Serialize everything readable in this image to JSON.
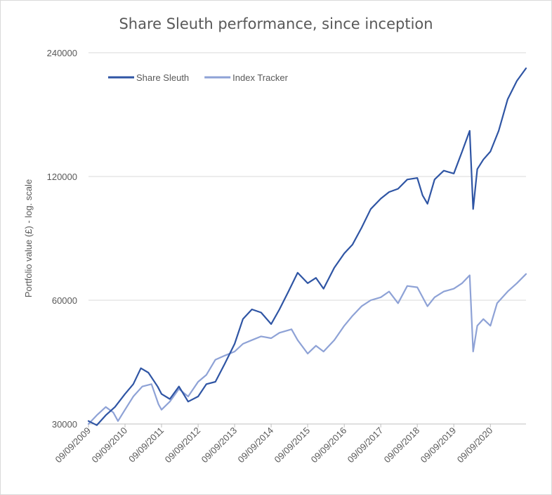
{
  "chart_data": {
    "type": "line",
    "title": "Share Sleuth performance, since inception",
    "xlabel": "",
    "ylabel": "Portfolio value (£) - log. scale",
    "y_scale": "log",
    "ylim": [
      30000,
      240000
    ],
    "yticks": [
      "30000",
      "60000",
      "120000",
      "240000"
    ],
    "ytick_values": [
      30000,
      60000,
      120000,
      240000
    ],
    "xticks": [
      "09/09/2009",
      "09/09/2010",
      "09/09/2011",
      "09/09/2012",
      "09/09/2013",
      "09/09/2014",
      "09/09/2015",
      "09/09/2016",
      "09/09/2017",
      "09/09/2018",
      "09/09/2019",
      "09/09/2020"
    ],
    "xlim": [
      "2009-09-09",
      "2021-08-31"
    ],
    "grid": true,
    "legend_position": "top-left",
    "series": [
      {
        "name": "Share Sleuth",
        "color": "#2f55a4",
        "points": [
          [
            "2009-09-09",
            30500
          ],
          [
            "2009-12-01",
            29800
          ],
          [
            "2010-03-01",
            31500
          ],
          [
            "2010-06-01",
            33000
          ],
          [
            "2010-09-09",
            35500
          ],
          [
            "2010-12-01",
            37500
          ],
          [
            "2011-02-15",
            41000
          ],
          [
            "2011-05-01",
            40000
          ],
          [
            "2011-08-01",
            37000
          ],
          [
            "2011-09-09",
            35500
          ],
          [
            "2011-12-01",
            34500
          ],
          [
            "2012-03-01",
            37000
          ],
          [
            "2012-06-01",
            34000
          ],
          [
            "2012-09-09",
            35000
          ],
          [
            "2012-12-01",
            37500
          ],
          [
            "2013-03-01",
            38000
          ],
          [
            "2013-06-01",
            42000
          ],
          [
            "2013-09-09",
            47000
          ],
          [
            "2013-12-01",
            54000
          ],
          [
            "2014-03-01",
            57000
          ],
          [
            "2014-06-01",
            56000
          ],
          [
            "2014-09-09",
            52500
          ],
          [
            "2014-12-01",
            57000
          ],
          [
            "2015-03-01",
            63000
          ],
          [
            "2015-06-01",
            70000
          ],
          [
            "2015-09-09",
            66000
          ],
          [
            "2015-12-01",
            68000
          ],
          [
            "2016-02-15",
            64000
          ],
          [
            "2016-06-01",
            72000
          ],
          [
            "2016-09-09",
            78000
          ],
          [
            "2016-12-01",
            82000
          ],
          [
            "2017-03-01",
            90000
          ],
          [
            "2017-06-01",
            100000
          ],
          [
            "2017-09-09",
            106000
          ],
          [
            "2017-12-01",
            110000
          ],
          [
            "2018-03-01",
            112000
          ],
          [
            "2018-06-01",
            118000
          ],
          [
            "2018-09-09",
            119000
          ],
          [
            "2018-11-01",
            108000
          ],
          [
            "2018-12-20",
            103000
          ],
          [
            "2019-03-01",
            118000
          ],
          [
            "2019-06-01",
            124000
          ],
          [
            "2019-09-09",
            122000
          ],
          [
            "2019-12-01",
            138000
          ],
          [
            "2020-02-15",
            155000
          ],
          [
            "2020-03-20",
            100000
          ],
          [
            "2020-05-01",
            125000
          ],
          [
            "2020-07-01",
            132000
          ],
          [
            "2020-09-09",
            138000
          ],
          [
            "2020-12-01",
            155000
          ],
          [
            "2021-03-01",
            185000
          ],
          [
            "2021-06-01",
            205000
          ],
          [
            "2021-08-31",
            220000
          ]
        ]
      },
      {
        "name": "Index Tracker",
        "color": "#8ea2d6",
        "points": [
          [
            "2009-09-09",
            30000
          ],
          [
            "2009-12-01",
            31500
          ],
          [
            "2010-03-01",
            33000
          ],
          [
            "2010-05-15",
            32000
          ],
          [
            "2010-07-01",
            30500
          ],
          [
            "2010-09-09",
            32500
          ],
          [
            "2010-12-01",
            35000
          ],
          [
            "2011-03-01",
            37000
          ],
          [
            "2011-06-01",
            37500
          ],
          [
            "2011-08-10",
            33500
          ],
          [
            "2011-09-09",
            32500
          ],
          [
            "2011-12-01",
            34000
          ],
          [
            "2012-03-01",
            36500
          ],
          [
            "2012-06-01",
            35000
          ],
          [
            "2012-09-09",
            38000
          ],
          [
            "2012-12-01",
            39500
          ],
          [
            "2013-03-01",
            43000
          ],
          [
            "2013-06-01",
            44000
          ],
          [
            "2013-09-09",
            45000
          ],
          [
            "2013-12-01",
            47000
          ],
          [
            "2014-03-01",
            48000
          ],
          [
            "2014-06-01",
            49000
          ],
          [
            "2014-09-09",
            48500
          ],
          [
            "2014-12-01",
            50000
          ],
          [
            "2015-04-01",
            51000
          ],
          [
            "2015-06-01",
            48000
          ],
          [
            "2015-09-09",
            44500
          ],
          [
            "2015-12-01",
            46500
          ],
          [
            "2016-02-15",
            45000
          ],
          [
            "2016-06-01",
            48000
          ],
          [
            "2016-09-09",
            52000
          ],
          [
            "2016-12-01",
            55000
          ],
          [
            "2017-03-01",
            58000
          ],
          [
            "2017-06-01",
            60000
          ],
          [
            "2017-09-09",
            61000
          ],
          [
            "2017-12-01",
            63000
          ],
          [
            "2018-03-01",
            59000
          ],
          [
            "2018-06-01",
            65000
          ],
          [
            "2018-09-09",
            64500
          ],
          [
            "2018-12-20",
            58000
          ],
          [
            "2019-03-01",
            61000
          ],
          [
            "2019-06-01",
            63000
          ],
          [
            "2019-09-09",
            64000
          ],
          [
            "2019-12-01",
            66000
          ],
          [
            "2020-02-15",
            69000
          ],
          [
            "2020-03-20",
            45000
          ],
          [
            "2020-05-01",
            52000
          ],
          [
            "2020-07-01",
            54000
          ],
          [
            "2020-09-09",
            52000
          ],
          [
            "2020-11-15",
            59000
          ],
          [
            "2021-03-01",
            63000
          ],
          [
            "2021-06-01",
            66000
          ],
          [
            "2021-08-31",
            69500
          ]
        ]
      }
    ]
  }
}
